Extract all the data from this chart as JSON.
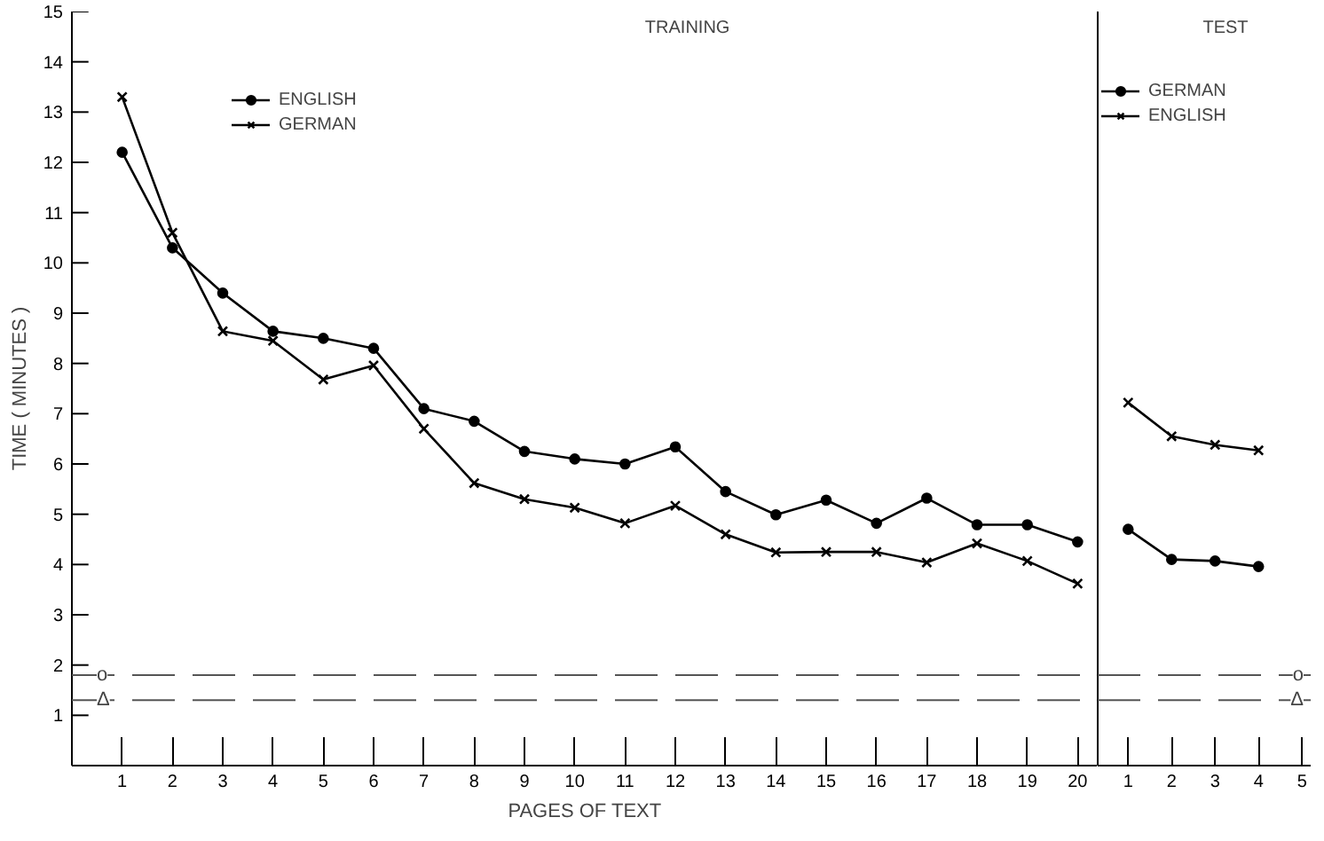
{
  "chart_data": [
    {
      "type": "line",
      "title": "TRAINING",
      "xlabel": "PAGES OF TEXT",
      "ylabel": "TIME ( MINUTES )",
      "x": [
        1,
        2,
        3,
        4,
        5,
        6,
        7,
        8,
        9,
        10,
        11,
        12,
        13,
        14,
        15,
        16,
        17,
        18,
        19,
        20
      ],
      "series": [
        {
          "name": "ENGLISH",
          "color": "#000000",
          "marker": "circle",
          "values": [
            12.2,
            10.3,
            9.4,
            8.64,
            8.5,
            8.3,
            7.1,
            6.85,
            6.25,
            6.1,
            6.0,
            6.34,
            5.45,
            4.99,
            5.28,
            4.82,
            5.32,
            4.79,
            4.79,
            4.45
          ]
        },
        {
          "name": "GERMAN",
          "color": "#000000",
          "marker": "cross",
          "values": [
            13.3,
            10.6,
            8.64,
            8.45,
            7.68,
            7.96,
            6.7,
            5.62,
            5.3,
            5.13,
            4.82,
            5.17,
            4.6,
            4.24,
            4.25,
            4.25,
            4.04,
            4.42,
            4.07,
            3.62
          ]
        }
      ],
      "xlim": [
        0,
        20.4
      ],
      "ylim": [
        0,
        15
      ],
      "xticks": [
        1,
        2,
        3,
        4,
        5,
        6,
        7,
        8,
        9,
        10,
        11,
        12,
        13,
        14,
        15,
        16,
        17,
        18,
        19,
        20
      ],
      "yticks": [
        1,
        2,
        3,
        4,
        5,
        6,
        7,
        8,
        9,
        10,
        11,
        12,
        13,
        14,
        15
      ],
      "ref_lines": [
        {
          "axis": "y",
          "value": 1.8,
          "label": "o",
          "line_style": "dashed",
          "color": "#555555"
        },
        {
          "axis": "y",
          "value": 1.3,
          "label": "Δ",
          "line_style": "dashed",
          "color": "#555555"
        }
      ],
      "grid": false,
      "legend": "top left",
      "line_style": "solid"
    },
    {
      "type": "line",
      "title": "TEST",
      "x": [
        1,
        2,
        3,
        4
      ],
      "series": [
        {
          "name": "GERMAN",
          "color": "#000000",
          "marker": "circle",
          "values": [
            4.7,
            4.1,
            4.07,
            3.96
          ]
        },
        {
          "name": "ENGLISH",
          "color": "#000000",
          "marker": "cross",
          "values": [
            7.22,
            6.55,
            6.38,
            6.27
          ]
        }
      ],
      "xlim": [
        0.3,
        5.2
      ],
      "ylim": [
        0,
        15
      ],
      "xticks": [
        1,
        2,
        3,
        4,
        5
      ],
      "ref_lines": [
        {
          "axis": "y",
          "value": 1.8,
          "label": "o",
          "line_style": "dashed",
          "color": "#555555"
        },
        {
          "axis": "y",
          "value": 1.3,
          "label": "Δ",
          "line_style": "dashed",
          "color": "#555555"
        }
      ],
      "grid": false,
      "legend": "top",
      "line_style": "solid",
      "tick_labels": "x"
    }
  ]
}
